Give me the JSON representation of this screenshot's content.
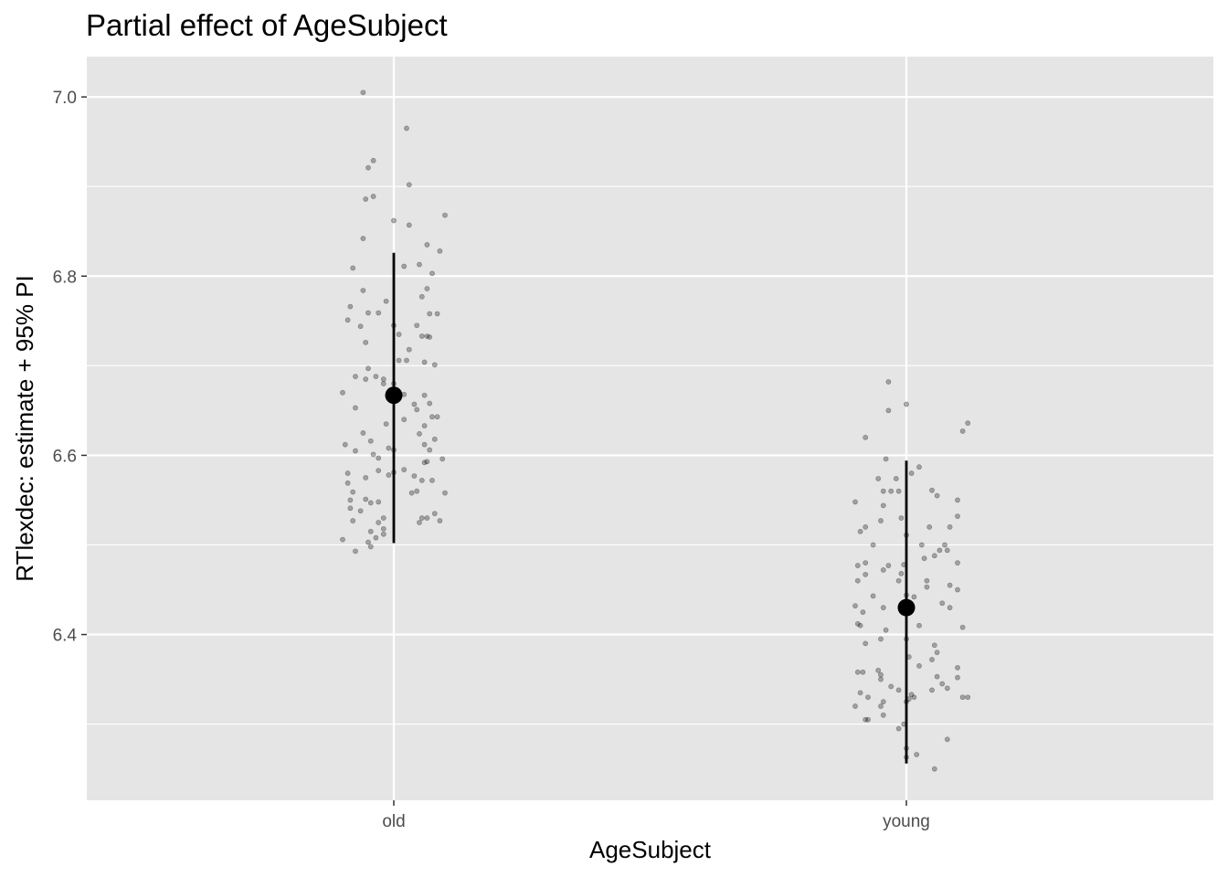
{
  "chart_data": {
    "type": "scatter",
    "title": "Partial effect of AgeSubject",
    "xlabel": "AgeSubject",
    "ylabel": "RTlexdec: estimate + 95% PI",
    "categories": [
      "old",
      "young"
    ],
    "ylim": [
      6.215,
      7.045
    ],
    "yticks": [
      6.4,
      6.6,
      6.8,
      7.0
    ],
    "yticks_minor": [
      6.3,
      6.5,
      6.7,
      6.9
    ],
    "ytick_labels": [
      "6.4",
      "6.6",
      "6.8",
      "7.0"
    ],
    "grid": true,
    "background": "#e5e5e5",
    "grid_color": "#ffffff",
    "estimate_color": "#000000",
    "point_color": "#000000",
    "point_alpha": 0.3,
    "estimates": [
      {
        "category": "old",
        "estimate": 6.667,
        "lower": 6.502,
        "upper": 6.826
      },
      {
        "category": "young",
        "estimate": 6.43,
        "lower": 6.256,
        "upper": 6.594
      }
    ],
    "observations": [
      {
        "category": "old",
        "points": [
          [
            -0.06,
            7.005
          ],
          [
            0.025,
            6.965
          ],
          [
            0.03,
            6.902
          ],
          [
            -0.04,
            6.929
          ],
          [
            -0.05,
            6.921
          ],
          [
            -0.04,
            6.889
          ],
          [
            -0.055,
            6.886
          ],
          [
            0.1,
            6.868
          ],
          [
            0.0,
            6.862
          ],
          [
            0.03,
            6.857
          ],
          [
            -0.06,
            6.842
          ],
          [
            0.065,
            6.835
          ],
          [
            0.05,
            6.813
          ],
          [
            0.02,
            6.811
          ],
          [
            0.09,
            6.828
          ],
          [
            -0.08,
            6.809
          ],
          [
            0.075,
            6.803
          ],
          [
            -0.085,
            6.766
          ],
          [
            -0.06,
            6.784
          ],
          [
            0.065,
            6.786
          ],
          [
            0.055,
            6.777
          ],
          [
            -0.05,
            6.759
          ],
          [
            -0.03,
            6.759
          ],
          [
            0.07,
            6.758
          ],
          [
            0.085,
            6.758
          ],
          [
            -0.09,
            6.751
          ],
          [
            -0.065,
            6.744
          ],
          [
            0.0,
            6.745
          ],
          [
            -0.015,
            6.772
          ],
          [
            0.045,
            6.745
          ],
          [
            0.01,
            6.735
          ],
          [
            0.055,
            6.733
          ],
          [
            0.065,
            6.733
          ],
          [
            -0.055,
            6.726
          ],
          [
            0.07,
            6.732
          ],
          [
            0.03,
            6.718
          ],
          [
            0.08,
            6.701
          ],
          [
            -0.05,
            6.697
          ],
          [
            -0.075,
            6.688
          ],
          [
            -0.035,
            6.688
          ],
          [
            0.01,
            6.706
          ],
          [
            0.025,
            6.706
          ],
          [
            0.06,
            6.704
          ],
          [
            -0.055,
            6.685
          ],
          [
            -0.02,
            6.685
          ],
          [
            -0.02,
            6.68
          ],
          [
            0.0,
            6.68
          ],
          [
            -0.1,
            6.67
          ],
          [
            0.02,
            6.668
          ],
          [
            0.06,
            6.667
          ],
          [
            -0.075,
            6.653
          ],
          [
            0.045,
            6.651
          ],
          [
            0.07,
            6.658
          ],
          [
            0.075,
            6.643
          ],
          [
            0.085,
            6.643
          ],
          [
            0.04,
            6.657
          ],
          [
            -0.015,
            6.635
          ],
          [
            0.02,
            6.64
          ],
          [
            0.06,
            6.633
          ],
          [
            0.05,
            6.624
          ],
          [
            -0.045,
            6.616
          ],
          [
            -0.06,
            6.625
          ],
          [
            0.08,
            6.618
          ],
          [
            -0.095,
            6.612
          ],
          [
            -0.01,
            6.608
          ],
          [
            0.0,
            6.606
          ],
          [
            0.06,
            6.612
          ],
          [
            0.07,
            6.606
          ],
          [
            -0.075,
            6.605
          ],
          [
            -0.04,
            6.601
          ],
          [
            -0.03,
            6.597
          ],
          [
            0.095,
            6.596
          ],
          [
            0.06,
            6.592
          ],
          [
            0.065,
            6.593
          ],
          [
            0.02,
            6.584
          ],
          [
            -0.09,
            6.58
          ],
          [
            -0.01,
            6.578
          ],
          [
            -0.03,
            6.583
          ],
          [
            0.0,
            6.581
          ],
          [
            -0.055,
            6.575
          ],
          [
            0.04,
            6.577
          ],
          [
            -0.09,
            6.569
          ],
          [
            0.055,
            6.572
          ],
          [
            0.075,
            6.572
          ],
          [
            0.045,
            6.56
          ],
          [
            0.035,
            6.558
          ],
          [
            0.1,
            6.558
          ],
          [
            -0.08,
            6.559
          ],
          [
            -0.085,
            6.55
          ],
          [
            -0.055,
            6.551
          ],
          [
            -0.045,
            6.547
          ],
          [
            -0.03,
            6.548
          ],
          [
            -0.085,
            6.541
          ],
          [
            -0.065,
            6.538
          ],
          [
            0.08,
            6.535
          ],
          [
            0.055,
            6.53
          ],
          [
            -0.08,
            6.527
          ],
          [
            -0.03,
            6.525
          ],
          [
            -0.02,
            6.53
          ],
          [
            0.05,
            6.525
          ],
          [
            0.065,
            6.53
          ],
          [
            0.09,
            6.527
          ],
          [
            -0.045,
            6.515
          ],
          [
            -0.02,
            6.512
          ],
          [
            -0.035,
            6.508
          ],
          [
            -0.02,
            6.518
          ],
          [
            -0.1,
            6.506
          ],
          [
            -0.05,
            6.503
          ],
          [
            -0.045,
            6.498
          ],
          [
            -0.075,
            6.493
          ]
        ]
      },
      {
        "category": "young",
        "points": [
          [
            -0.035,
            6.682
          ],
          [
            0.0,
            6.657
          ],
          [
            -0.035,
            6.65
          ],
          [
            0.12,
            6.636
          ],
          [
            0.11,
            6.627
          ],
          [
            -0.08,
            6.62
          ],
          [
            -0.04,
            6.596
          ],
          [
            -0.055,
            6.574
          ],
          [
            -0.02,
            6.574
          ],
          [
            0.025,
            6.587
          ],
          [
            -0.03,
            6.56
          ],
          [
            -0.015,
            6.56
          ],
          [
            -0.045,
            6.56
          ],
          [
            0.05,
            6.561
          ],
          [
            0.1,
            6.55
          ],
          [
            -0.1,
            6.548
          ],
          [
            0.06,
            6.555
          ],
          [
            0.01,
            6.58
          ],
          [
            0.1,
            6.532
          ],
          [
            -0.09,
            6.515
          ],
          [
            -0.05,
            6.527
          ],
          [
            -0.045,
            6.544
          ],
          [
            -0.01,
            6.53
          ],
          [
            -0.08,
            6.52
          ],
          [
            0.045,
            6.52
          ],
          [
            0.085,
            6.52
          ],
          [
            0.0,
            6.511
          ],
          [
            0.03,
            6.5
          ],
          [
            -0.065,
            6.5
          ],
          [
            0.075,
            6.5
          ],
          [
            0.065,
            6.494
          ],
          [
            0.08,
            6.494
          ],
          [
            0.055,
            6.488
          ],
          [
            0.1,
            6.48
          ],
          [
            -0.08,
            6.48
          ],
          [
            -0.095,
            6.477
          ],
          [
            -0.035,
            6.477
          ],
          [
            -0.005,
            6.478
          ],
          [
            0.035,
            6.485
          ],
          [
            -0.045,
            6.472
          ],
          [
            -0.01,
            6.468
          ],
          [
            -0.08,
            6.467
          ],
          [
            -0.095,
            6.46
          ],
          [
            -0.015,
            6.46
          ],
          [
            0.04,
            6.46
          ],
          [
            0.085,
            6.455
          ],
          [
            0.04,
            6.453
          ],
          [
            0.0,
            6.444
          ],
          [
            -0.065,
            6.443
          ],
          [
            0.015,
            6.442
          ],
          [
            0.1,
            6.45
          ],
          [
            0.07,
            6.435
          ],
          [
            -0.1,
            6.432
          ],
          [
            -0.01,
            6.432
          ],
          [
            -0.045,
            6.43
          ],
          [
            0.085,
            6.43
          ],
          [
            -0.085,
            6.425
          ],
          [
            0.0,
            6.423
          ],
          [
            0.025,
            6.41
          ],
          [
            0.11,
            6.408
          ],
          [
            -0.095,
            6.412
          ],
          [
            -0.09,
            6.41
          ],
          [
            -0.04,
            6.405
          ],
          [
            0.055,
            6.388
          ],
          [
            0.0,
            6.395
          ],
          [
            -0.08,
            6.39
          ],
          [
            -0.05,
            6.395
          ],
          [
            0.005,
            6.375
          ],
          [
            0.06,
            6.38
          ],
          [
            0.05,
            6.372
          ],
          [
            0.025,
            6.365
          ],
          [
            -0.05,
            6.355
          ],
          [
            -0.055,
            6.36
          ],
          [
            -0.085,
            6.358
          ],
          [
            0.1,
            6.363
          ],
          [
            -0.095,
            6.358
          ],
          [
            0.06,
            6.353
          ],
          [
            0.07,
            6.345
          ],
          [
            0.1,
            6.352
          ],
          [
            0.08,
            6.34
          ],
          [
            -0.05,
            6.35
          ],
          [
            -0.09,
            6.335
          ],
          [
            -0.03,
            6.342
          ],
          [
            -0.015,
            6.338
          ],
          [
            0.05,
            6.338
          ],
          [
            -0.075,
            6.33
          ],
          [
            0.01,
            6.333
          ],
          [
            0.005,
            6.328
          ],
          [
            0.0,
            6.325
          ],
          [
            -0.045,
            6.325
          ],
          [
            -0.05,
            6.32
          ],
          [
            0.015,
            6.33
          ],
          [
            0.12,
            6.33
          ],
          [
            0.11,
            6.33
          ],
          [
            -0.1,
            6.32
          ],
          [
            -0.045,
            6.31
          ],
          [
            -0.08,
            6.305
          ],
          [
            -0.075,
            6.305
          ],
          [
            -0.005,
            6.3
          ],
          [
            -0.015,
            6.295
          ],
          [
            0.08,
            6.283
          ],
          [
            0.0,
            6.273
          ],
          [
            0.0,
            6.263
          ],
          [
            0.02,
            6.266
          ],
          [
            0.055,
            6.25
          ]
        ]
      }
    ]
  }
}
